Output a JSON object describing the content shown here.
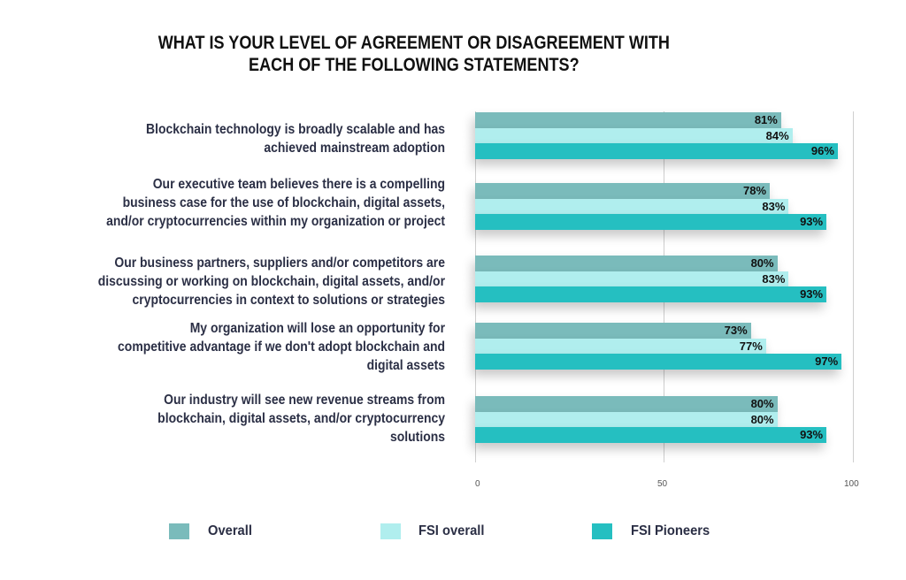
{
  "title": {
    "lines": [
      "WHAT IS YOUR LEVEL OF AGREEMENT OR DISAGREEMENT WITH",
      "EACH OF THE FOLLOWING STATEMENTS?"
    ]
  },
  "categories": [
    {
      "lines": [
        "Blockchain technology is broadly scalable and has",
        "achieved mainstream adoption"
      ]
    },
    {
      "lines": [
        "Our executive team believes there is a compelling",
        "business case for the use of blockchain, digital assets,",
        "and/or cryptocurrencies within my organization or project"
      ]
    },
    {
      "lines": [
        "Our business partners, suppliers and/or competitors are",
        "discussing or working on blockchain, digital assets, and/or",
        "cryptocurrencies in context to solutions or strategies"
      ]
    },
    {
      "lines": [
        "My organization will lose an opportunity for",
        "competitive advantage if we don't adopt blockchain and",
        "digital assets"
      ]
    },
    {
      "lines": [
        "Our industry will see new revenue streams from",
        "blockchain, digital assets, and/or cryptocurrency",
        "solutions"
      ]
    }
  ],
  "axis": {
    "ticks": [
      "0",
      "50",
      "100"
    ]
  },
  "legend": [
    {
      "label": "Overall",
      "color": "#7ABBBB"
    },
    {
      "label": "FSI overall",
      "color": "#B0EEEE"
    },
    {
      "label": "FSI Pioneers",
      "color": "#25BFC1"
    }
  ],
  "chart_data": {
    "type": "bar",
    "orientation": "horizontal",
    "title": "WHAT IS YOUR LEVEL OF AGREEMENT OR DISAGREEMENT WITH EACH OF THE FOLLOWING STATEMENTS?",
    "categories": [
      "Blockchain technology is broadly scalable and has achieved mainstream adoption",
      "Our executive team believes there is a compelling business case for the use of blockchain, digital assets, and/or cryptocurrencies within my organization or project",
      "Our business partners, suppliers and/or competitors are discussing or working on blockchain, digital assets, and/or cryptocurrencies in context to solutions or strategies",
      "My organization will lose an opportunity for competitive advantage if we don't adopt blockchain and digital assets",
      "Our industry will see new revenue streams from blockchain, digital assets, and/or cryptocurrency solutions"
    ],
    "series": [
      {
        "name": "Overall",
        "color": "#7ABBBB",
        "values": [
          81,
          78,
          80,
          73,
          80
        ],
        "labels": [
          "81%",
          "78%",
          "80%",
          "73%",
          "80%"
        ]
      },
      {
        "name": "FSI overall",
        "color": "#B0EEEE",
        "values": [
          84,
          83,
          83,
          77,
          80
        ],
        "labels": [
          "84%",
          "83%",
          "83%",
          "77%",
          "80%"
        ]
      },
      {
        "name": "FSI Pioneers",
        "color": "#25BFC1",
        "values": [
          96,
          93,
          93,
          97,
          93
        ],
        "labels": [
          "96%",
          "93%",
          "93%",
          "97%",
          "93%"
        ]
      }
    ],
    "xlabel": "",
    "ylabel": "",
    "xlim": [
      0,
      100
    ],
    "xticks": [
      0,
      50,
      100
    ],
    "grid": true,
    "legend_position": "bottom"
  }
}
